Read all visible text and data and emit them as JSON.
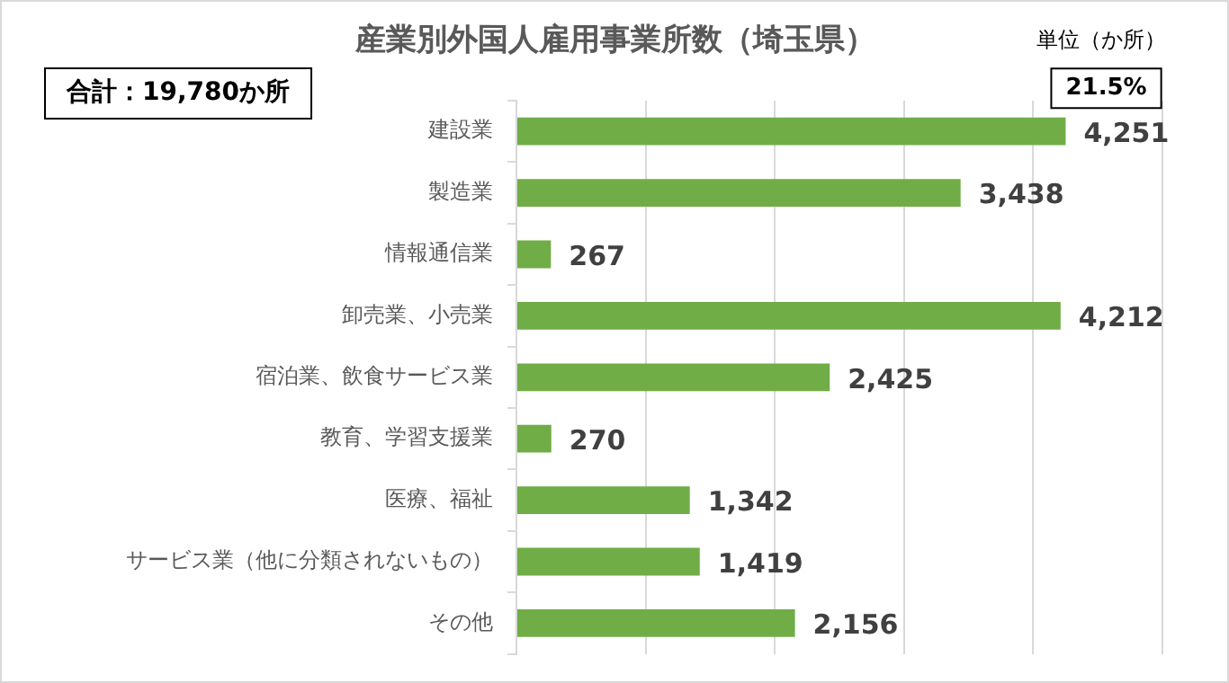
{
  "chart_data": {
    "type": "bar",
    "orientation": "horizontal",
    "title": "産業別外国人雇用事業所数（埼玉県）",
    "categories": [
      "建設業",
      "製造業",
      "情報通信業",
      "卸売業、小売業",
      "宿泊業、飲食サービス業",
      "教育、学習支援業",
      "医療、福祉",
      "サービス業（他に分類されないもの）",
      "その他"
    ],
    "values": [
      4251,
      3438,
      267,
      4212,
      2425,
      270,
      1342,
      1419,
      2156
    ],
    "color": "#70ad47",
    "xlim": [
      0,
      5000
    ],
    "xticks": [
      {
        "value": 0,
        "label": null
      },
      {
        "value": 1000,
        "label": null
      },
      {
        "value": 2000,
        "label": null
      },
      {
        "value": 3000,
        "label": null
      },
      {
        "value": 4000,
        "label": null
      },
      {
        "value": 5000,
        "label": null
      }
    ],
    "value_labels": [
      "4,251",
      "3,438",
      "267",
      "4,212",
      "2,425",
      "270",
      "1,342",
      "1,419",
      "2,156"
    ],
    "grid": "x",
    "tick_labels": "y",
    "legend": false,
    "annotations": [
      "合計：19,780か所",
      "単位（か所）",
      {
        "text": "21.5%",
        "x": 4251,
        "y": "建設業"
      }
    ]
  }
}
